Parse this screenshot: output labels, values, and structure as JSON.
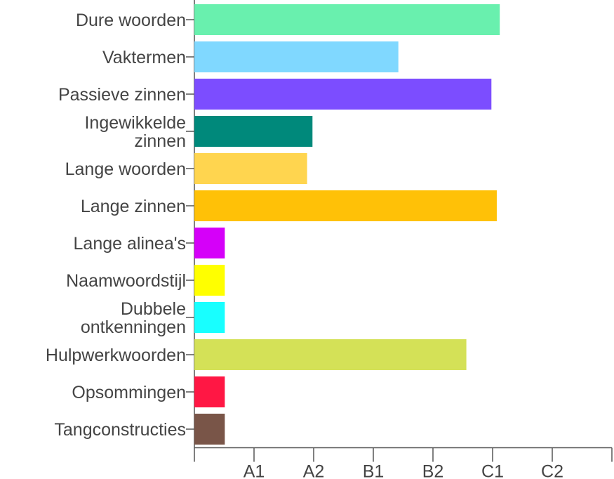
{
  "chart_data": {
    "type": "bar",
    "orientation": "horizontal",
    "categories": [
      "Dure woorden",
      "Vaktermen",
      "Passieve zinnen",
      "Ingewikkelde\nzinnen",
      "Lange woorden",
      "Lange zinnen",
      "Lange alinea's",
      "Naamwoordstijl",
      "Dubbele\nontkenningen",
      "Hulpwerkwoorden",
      "Opsommingen",
      "Tangconstructies"
    ],
    "values": [
      5.12,
      3.42,
      4.98,
      1.98,
      1.89,
      5.07,
      0.51,
      0.51,
      0.51,
      4.56,
      0.51,
      0.51
    ],
    "colors": [
      "#69f0ae",
      "#80d8ff",
      "#7c4dff",
      "#00897b",
      "#ffd54f",
      "#ffc107",
      "#d500f9",
      "#ffff00",
      "#18ffff",
      "#d4e157",
      "#ff1744",
      "#795548"
    ],
    "xlim": [
      0,
      7
    ],
    "xticks": [
      {
        "value": 1,
        "label": "A1"
      },
      {
        "value": 2,
        "label": "A2"
      },
      {
        "value": 3,
        "label": "B1"
      },
      {
        "value": 4,
        "label": "B2"
      },
      {
        "value": 5,
        "label": "C1"
      },
      {
        "value": 6,
        "label": "C2"
      }
    ],
    "grid": false
  }
}
